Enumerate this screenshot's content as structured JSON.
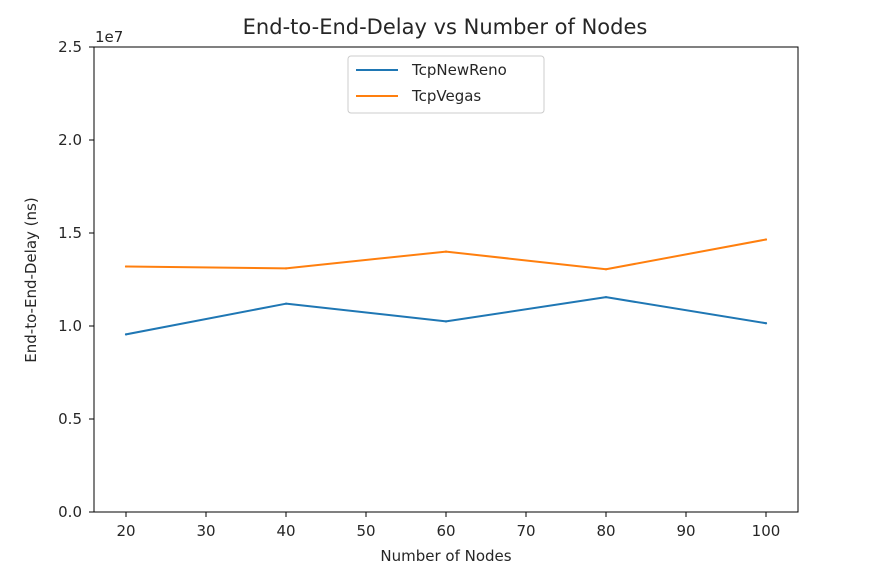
{
  "chart_data": {
    "type": "line",
    "title": "End-to-End-Delay vs Number of Nodes",
    "xlabel": "Number of Nodes",
    "ylabel": "End-to-End-Delay (ns)",
    "y_offset_label": "1e7",
    "x": [
      20,
      40,
      60,
      80,
      100
    ],
    "xlim": [
      16,
      104
    ],
    "ylim": [
      0,
      25000000
    ],
    "x_ticks": [
      20,
      30,
      40,
      50,
      60,
      70,
      80,
      90,
      100
    ],
    "x_tick_labels": [
      "20",
      "30",
      "40",
      "50",
      "60",
      "70",
      "80",
      "90",
      "100"
    ],
    "y_ticks": [
      0,
      5000000,
      10000000,
      15000000,
      20000000,
      25000000
    ],
    "y_tick_labels": [
      "0.0",
      "0.5",
      "1.0",
      "1.5",
      "2.0",
      "2.5"
    ],
    "grid": false,
    "legend_position": "top-center",
    "series": [
      {
        "name": "TcpNewReno",
        "color": "#1f77b4",
        "values": [
          9550000,
          11200000,
          10250000,
          11550000,
          10150000
        ]
      },
      {
        "name": "TcpVegas",
        "color": "#ff7f0e",
        "values": [
          13200000,
          13100000,
          14000000,
          13050000,
          14650000
        ]
      }
    ]
  }
}
